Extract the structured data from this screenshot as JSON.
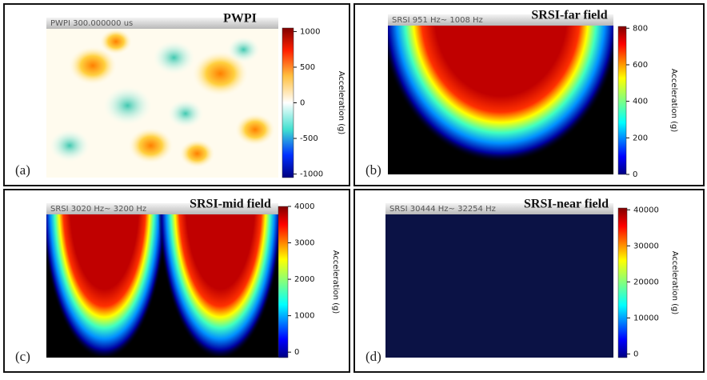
{
  "panels": [
    {
      "tag": "(a)",
      "title": "PWPI",
      "header": "PWPI 300.000000 us",
      "colorbar": {
        "label": "Acceleration (g)",
        "lim": [
          -1050,
          1050
        ],
        "ticks": [
          1000,
          500,
          0,
          -500,
          -1000
        ]
      }
    },
    {
      "tag": "(b)",
      "title": "SRSI-far field",
      "header": "SRSI 951 Hz~ 1008 Hz",
      "colorbar": {
        "label": "Acceleration (g)",
        "lim": [
          0,
          810
        ],
        "ticks": [
          800,
          600,
          400,
          200,
          0
        ]
      }
    },
    {
      "tag": "(c)",
      "title": "SRSI-mid field",
      "header": "SRSI 3020 Hz~ 3200 Hz",
      "colorbar": {
        "label": "Acceleration (g)",
        "lim": [
          -150,
          4000
        ],
        "ticks": [
          4000,
          3000,
          2000,
          1000,
          0
        ]
      }
    },
    {
      "tag": "(d)",
      "title": "SRSI-near field",
      "header": "SRSI 30444 Hz~ 32254 Hz",
      "colorbar": {
        "label": "Acceleration (g)",
        "lim": [
          -1000,
          40500
        ],
        "ticks": [
          40000,
          30000,
          20000,
          10000,
          0
        ]
      }
    }
  ]
}
